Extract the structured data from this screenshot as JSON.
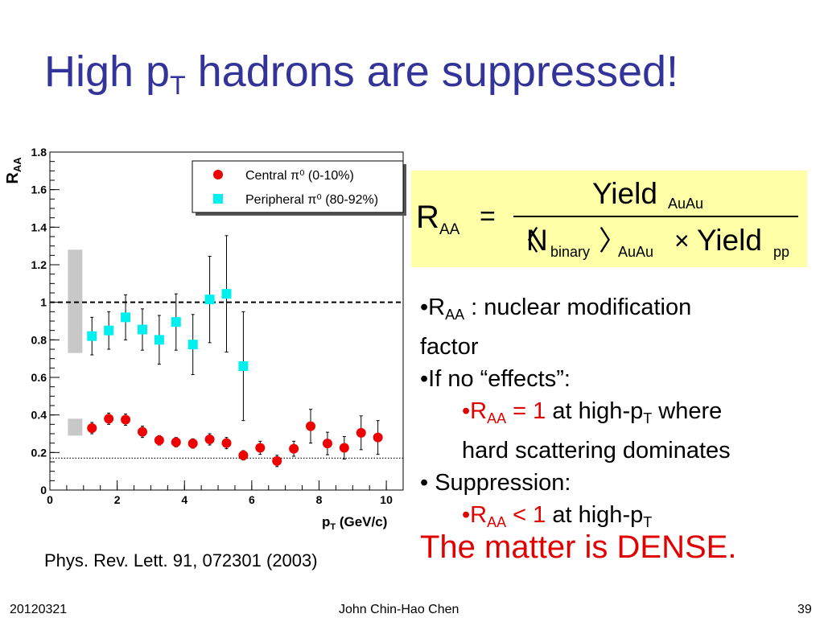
{
  "slide": {
    "title_main": "High p",
    "title_sub": "T",
    "title_rest": " hadrons are suppressed!",
    "formula": {
      "r": "R",
      "r_sub": "AA",
      "eq": "=",
      "num": "Yield",
      "num_sub": "AuAu",
      "lang": "〈",
      "n": "N",
      "n_sub": "binary",
      "rang": "〉",
      "auau_sub": "AuAu",
      "times": "×",
      "den_yield": "Yield",
      "pp_sub": "pp"
    },
    "bullets": {
      "b1_bullet": "•R",
      "b1_sub": "AA",
      "b1_text": " : nuclear modification",
      "b1_text2": "factor",
      "b2": "•If no “effects”:",
      "b3_bullet": "•R",
      "b3_sub": "AA",
      "b3_red": " = 1",
      "b3_text": " at high-p",
      "b3_sub2": "T",
      "b3_text2": " where",
      "b3_line2": "hard scattering dominates",
      "b4": "• Suppression:",
      "b5_bullet": "•R",
      "b5_sub": "AA",
      "b5_red": " < 1",
      "b5_text": " at high-p",
      "b5_sub2": "T"
    },
    "conclusion": "The matter is DENSE.",
    "citation": "Phys. Rev. Lett. 91, 072301 (2003)",
    "footer": {
      "date": "20120321",
      "author": "John Chin-Hao Chen",
      "page": "39"
    }
  },
  "colors": {
    "title": "#333399",
    "central": "#ee0000",
    "peripheral": "#00f0f0",
    "formula_bg": "#ffffa8",
    "highlight": "#e00000",
    "sys_box": "#c8c8c8"
  },
  "chart_data": {
    "type": "scatter",
    "ylabel": "R",
    "ylabel_sub": "AA",
    "xlabel": "p",
    "xlabel_sub": "T",
    "xlabel_unit": " (GeV/c)",
    "xlim": [
      0,
      10.5
    ],
    "ylim": [
      0,
      1.8
    ],
    "xticks": [
      0,
      2,
      4,
      6,
      8,
      10
    ],
    "yticks": [
      0,
      0.2,
      0.4,
      0.6,
      0.8,
      1,
      1.2,
      1.4,
      1.6,
      1.8
    ],
    "ytick_labels": [
      "0",
      "0.2",
      "0.4",
      "0.6",
      "0.8",
      "1",
      "1.2",
      "1.4",
      "1.6",
      "1.8"
    ],
    "reference_lines": [
      {
        "y": 1.0,
        "style": "dashed"
      },
      {
        "y": 0.17,
        "style": "dotted"
      }
    ],
    "systematic_bands": [
      {
        "x": 0.75,
        "ylow": 0.73,
        "yhigh": 1.28
      },
      {
        "x": 0.75,
        "ylow": 0.29,
        "yhigh": 0.38
      }
    ],
    "legend_position": "top-right",
    "series": [
      {
        "name": "Central π⁰ (0-10%)",
        "marker": "circle",
        "color": "#ee0000",
        "x": [
          1.25,
          1.75,
          2.25,
          2.75,
          3.25,
          3.75,
          4.25,
          4.75,
          5.25,
          5.75,
          6.25,
          6.75,
          7.25,
          7.75,
          8.25,
          8.75,
          9.25,
          9.75
        ],
        "y": [
          0.33,
          0.38,
          0.375,
          0.31,
          0.265,
          0.255,
          0.248,
          0.27,
          0.25,
          0.185,
          0.225,
          0.155,
          0.22,
          0.34,
          0.248,
          0.225,
          0.305,
          0.28
        ],
        "err": [
          0.03,
          0.03,
          0.03,
          0.03,
          0.025,
          0.025,
          0.025,
          0.03,
          0.03,
          0.025,
          0.035,
          0.03,
          0.04,
          0.09,
          0.06,
          0.06,
          0.09,
          0.09
        ]
      },
      {
        "name": "Peripheral π⁰ (80-92%)",
        "marker": "square",
        "color": "#00f0f0",
        "x": [
          1.25,
          1.75,
          2.25,
          2.75,
          3.25,
          3.75,
          4.25,
          4.75,
          5.25,
          5.75
        ],
        "y": [
          0.82,
          0.85,
          0.92,
          0.855,
          0.8,
          0.895,
          0.775,
          1.015,
          1.045,
          0.66
        ],
        "err": [
          0.1,
          0.1,
          0.12,
          0.11,
          0.13,
          0.15,
          0.16,
          0.23,
          0.31,
          0.29
        ]
      }
    ]
  }
}
